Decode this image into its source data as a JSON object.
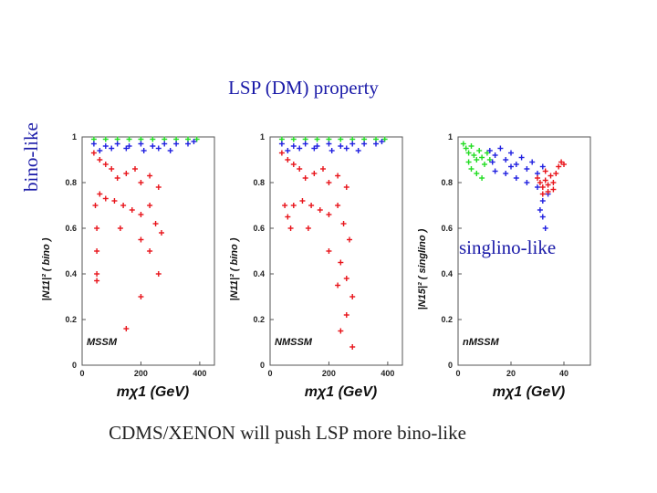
{
  "slide": {
    "title": "LSP (DM) property",
    "side_label": "bino-like",
    "singlino_label": "singlino-like",
    "bottom_note": "CDMS/XENON will push LSP more bino-like"
  },
  "colors": {
    "red": "#e8141a",
    "blue": "#2020e0",
    "green": "#22dd22",
    "text_blue": "#1a1aa8"
  },
  "chart_data": [
    {
      "type": "scatter",
      "model": "MSSM",
      "ylabel": "|N11|² ( bino )",
      "xlabel": "mχ1 (GeV)",
      "xlim": [
        0,
        450
      ],
      "ylim": [
        0,
        1
      ],
      "xticks": [
        "0",
        "200",
        "400"
      ],
      "yticks": [
        "0",
        "0.2",
        "0.4",
        "0.6",
        "0.8",
        "1"
      ],
      "series": [
        {
          "color": "green",
          "points": [
            [
              40,
              0.99
            ],
            [
              80,
              0.99
            ],
            [
              120,
              0.99
            ],
            [
              160,
              0.99
            ],
            [
              200,
              0.99
            ],
            [
              240,
              0.99
            ],
            [
              280,
              0.99
            ],
            [
              320,
              0.99
            ],
            [
              360,
              0.99
            ],
            [
              390,
              0.99
            ]
          ]
        },
        {
          "color": "blue",
          "points": [
            [
              40,
              0.97
            ],
            [
              80,
              0.96
            ],
            [
              120,
              0.97
            ],
            [
              160,
              0.96
            ],
            [
              200,
              0.97
            ],
            [
              240,
              0.96
            ],
            [
              280,
              0.97
            ],
            [
              320,
              0.97
            ],
            [
              360,
              0.97
            ],
            [
              380,
              0.98
            ],
            [
              60,
              0.94
            ],
            [
              100,
              0.95
            ],
            [
              150,
              0.95
            ],
            [
              210,
              0.94
            ],
            [
              260,
              0.95
            ],
            [
              300,
              0.94
            ]
          ]
        },
        {
          "color": "red",
          "points": [
            [
              40,
              0.93
            ],
            [
              60,
              0.9
            ],
            [
              80,
              0.88
            ],
            [
              100,
              0.86
            ],
            [
              120,
              0.82
            ],
            [
              150,
              0.84
            ],
            [
              180,
              0.86
            ],
            [
              200,
              0.8
            ],
            [
              230,
              0.83
            ],
            [
              260,
              0.78
            ],
            [
              45,
              0.7
            ],
            [
              50,
              0.6
            ],
            [
              50,
              0.5
            ],
            [
              50,
              0.4
            ],
            [
              50,
              0.37
            ],
            [
              60,
              0.75
            ],
            [
              80,
              0.73
            ],
            [
              110,
              0.72
            ],
            [
              140,
              0.7
            ],
            [
              170,
              0.68
            ],
            [
              200,
              0.66
            ],
            [
              230,
              0.7
            ],
            [
              250,
              0.62
            ],
            [
              270,
              0.58
            ],
            [
              130,
              0.6
            ],
            [
              200,
              0.55
            ],
            [
              230,
              0.5
            ],
            [
              260,
              0.4
            ],
            [
              200,
              0.3
            ],
            [
              150,
              0.16
            ]
          ]
        }
      ]
    },
    {
      "type": "scatter",
      "model": "NMSSM",
      "ylabel": "|N11|² ( bino )",
      "xlabel": "mχ1 (GeV)",
      "xlim": [
        0,
        450
      ],
      "ylim": [
        0,
        1
      ],
      "xticks": [
        "0",
        "200",
        "400"
      ],
      "yticks": [
        "0",
        "0.2",
        "0.4",
        "0.6",
        "0.8",
        "1"
      ],
      "series": [
        {
          "color": "green",
          "points": [
            [
              40,
              0.99
            ],
            [
              80,
              0.99
            ],
            [
              120,
              0.99
            ],
            [
              160,
              0.99
            ],
            [
              200,
              0.99
            ],
            [
              240,
              0.99
            ],
            [
              280,
              0.99
            ],
            [
              320,
              0.99
            ],
            [
              360,
              0.99
            ],
            [
              390,
              0.99
            ]
          ]
        },
        {
          "color": "blue",
          "points": [
            [
              40,
              0.97
            ],
            [
              80,
              0.96
            ],
            [
              120,
              0.97
            ],
            [
              160,
              0.96
            ],
            [
              200,
              0.97
            ],
            [
              240,
              0.96
            ],
            [
              280,
              0.97
            ],
            [
              320,
              0.97
            ],
            [
              360,
              0.97
            ],
            [
              380,
              0.98
            ],
            [
              60,
              0.94
            ],
            [
              100,
              0.95
            ],
            [
              150,
              0.95
            ],
            [
              210,
              0.94
            ],
            [
              260,
              0.95
            ],
            [
              300,
              0.94
            ]
          ]
        },
        {
          "color": "red",
          "points": [
            [
              40,
              0.93
            ],
            [
              60,
              0.9
            ],
            [
              80,
              0.88
            ],
            [
              100,
              0.86
            ],
            [
              120,
              0.82
            ],
            [
              150,
              0.84
            ],
            [
              180,
              0.86
            ],
            [
              200,
              0.8
            ],
            [
              230,
              0.83
            ],
            [
              260,
              0.78
            ],
            [
              50,
              0.7
            ],
            [
              60,
              0.65
            ],
            [
              70,
              0.6
            ],
            [
              80,
              0.7
            ],
            [
              110,
              0.72
            ],
            [
              140,
              0.7
            ],
            [
              170,
              0.68
            ],
            [
              200,
              0.66
            ],
            [
              230,
              0.7
            ],
            [
              250,
              0.62
            ],
            [
              270,
              0.55
            ],
            [
              130,
              0.6
            ],
            [
              200,
              0.5
            ],
            [
              240,
              0.45
            ],
            [
              260,
              0.38
            ],
            [
              280,
              0.3
            ],
            [
              260,
              0.22
            ],
            [
              240,
              0.15
            ],
            [
              280,
              0.08
            ],
            [
              230,
              0.35
            ]
          ]
        }
      ]
    },
    {
      "type": "scatter",
      "model": "nMSSM",
      "ylabel": "|N15|² ( singlino )",
      "xlabel": "mχ1 (GeV)",
      "xlim": [
        0,
        50
      ],
      "ylim": [
        0,
        1
      ],
      "xticks": [
        "0",
        "20",
        "40"
      ],
      "yticks": [
        "0",
        "0.2",
        "0.4",
        "0.6",
        "0.8",
        "1"
      ],
      "series": [
        {
          "color": "green",
          "points": [
            [
              2,
              0.97
            ],
            [
              3,
              0.95
            ],
            [
              4,
              0.93
            ],
            [
              5,
              0.96
            ],
            [
              6,
              0.92
            ],
            [
              7,
              0.9
            ],
            [
              8,
              0.94
            ],
            [
              9,
              0.91
            ],
            [
              10,
              0.88
            ],
            [
              5,
              0.86
            ],
            [
              7,
              0.84
            ],
            [
              11,
              0.93
            ],
            [
              12,
              0.9
            ],
            [
              4,
              0.89
            ],
            [
              9,
              0.82
            ]
          ]
        },
        {
          "color": "blue",
          "points": [
            [
              12,
              0.94
            ],
            [
              14,
              0.92
            ],
            [
              16,
              0.95
            ],
            [
              18,
              0.9
            ],
            [
              20,
              0.93
            ],
            [
              22,
              0.88
            ],
            [
              24,
              0.91
            ],
            [
              26,
              0.86
            ],
            [
              28,
              0.89
            ],
            [
              30,
              0.84
            ],
            [
              32,
              0.87
            ],
            [
              14,
              0.85
            ],
            [
              18,
              0.84
            ],
            [
              22,
              0.82
            ],
            [
              26,
              0.8
            ],
            [
              30,
              0.78
            ],
            [
              32,
              0.72
            ],
            [
              32,
              0.65
            ],
            [
              33,
              0.6
            ],
            [
              31,
              0.68
            ],
            [
              34,
              0.75
            ],
            [
              13,
              0.89
            ],
            [
              20,
              0.87
            ]
          ]
        },
        {
          "color": "red",
          "points": [
            [
              30,
              0.82
            ],
            [
              31,
              0.8
            ],
            [
              32,
              0.78
            ],
            [
              33,
              0.81
            ],
            [
              34,
              0.79
            ],
            [
              35,
              0.83
            ],
            [
              36,
              0.8
            ],
            [
              37,
              0.84
            ],
            [
              38,
              0.87
            ],
            [
              39,
              0.89
            ],
            [
              32,
              0.75
            ],
            [
              34,
              0.76
            ],
            [
              36,
              0.77
            ],
            [
              33,
              0.85
            ],
            [
              40,
              0.88
            ]
          ]
        }
      ]
    }
  ]
}
